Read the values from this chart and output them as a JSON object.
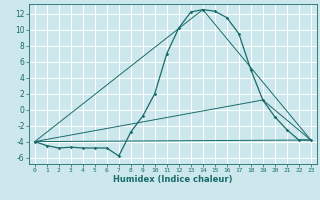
{
  "xlabel": "Humidex (Indice chaleur)",
  "bg_color": "#cce8ed",
  "grid_color": "#ffffff",
  "line_color": "#1a6b6b",
  "xlim": [
    -0.5,
    23.5
  ],
  "ylim": [
    -6.8,
    13.2
  ],
  "yticks": [
    -6,
    -4,
    -2,
    0,
    2,
    4,
    6,
    8,
    10,
    12
  ],
  "xticks": [
    0,
    1,
    2,
    3,
    4,
    5,
    6,
    7,
    8,
    9,
    10,
    11,
    12,
    13,
    14,
    15,
    16,
    17,
    18,
    19,
    20,
    21,
    22,
    23
  ],
  "series": [
    [
      0,
      -4.0
    ],
    [
      1,
      -4.5
    ],
    [
      2,
      -4.8
    ],
    [
      3,
      -4.7
    ],
    [
      4,
      -4.8
    ],
    [
      5,
      -4.8
    ],
    [
      6,
      -4.8
    ],
    [
      7,
      -5.8
    ],
    [
      8,
      -2.8
    ],
    [
      9,
      -0.8
    ],
    [
      10,
      2.0
    ],
    [
      11,
      7.0
    ],
    [
      12,
      10.2
    ],
    [
      13,
      12.2
    ],
    [
      14,
      12.5
    ],
    [
      15,
      12.3
    ],
    [
      16,
      11.5
    ],
    [
      17,
      9.5
    ],
    [
      18,
      5.0
    ],
    [
      19,
      1.2
    ],
    [
      20,
      -0.9
    ],
    [
      21,
      -2.5
    ],
    [
      22,
      -3.8
    ],
    [
      23,
      -3.8
    ]
  ],
  "line2": [
    [
      0,
      -4.0
    ],
    [
      23,
      -3.8
    ]
  ],
  "line3": [
    [
      0,
      -4.0
    ],
    [
      19,
      1.2
    ],
    [
      23,
      -3.8
    ]
  ],
  "line4": [
    [
      0,
      -4.0
    ],
    [
      14,
      12.5
    ],
    [
      23,
      -3.8
    ]
  ]
}
